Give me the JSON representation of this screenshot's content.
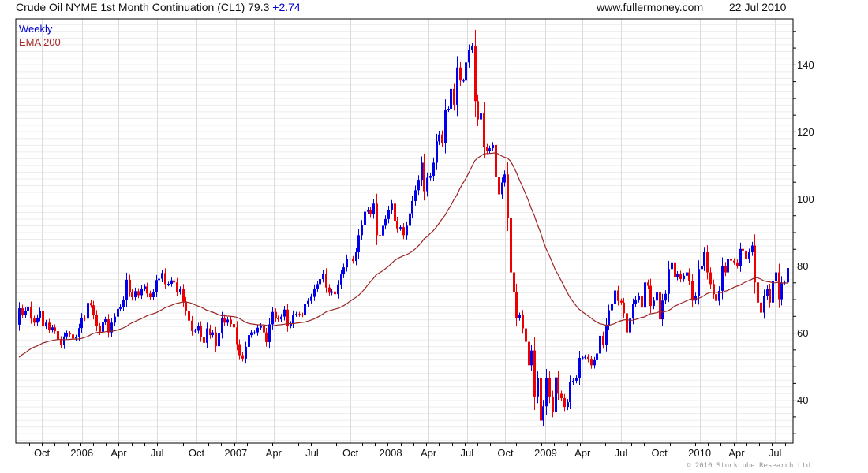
{
  "header": {
    "title": "Crude Oil NYME 1st Month Continuation (CL1) 79.3 ",
    "change": "+2.74",
    "site": "www.fullermoney.com",
    "date": "22 Jul 2010"
  },
  "legend": {
    "series": "Weekly",
    "ema": "EMA 200"
  },
  "footer": {
    "copyright": "© 2010 Stockcube Research Ltd"
  },
  "colors": {
    "up": "#0000ee",
    "down": "#ee0000",
    "ema": "#9b2424",
    "legend_series": "#0000cc",
    "legend_ema": "#a52a2a",
    "change": "#0000cc"
  },
  "chart_data": {
    "type": "candlestick",
    "title": "Crude Oil NYME 1st Month Continuation (CL1)",
    "interval": "weekly",
    "ylim": [
      27.1,
      153.6
    ],
    "y_ticks": [
      40,
      60,
      80,
      100,
      120,
      140
    ],
    "y_minor_grid_step": 2,
    "x_ticks": [
      {
        "label": "Oct",
        "week": 7.7
      },
      {
        "label": "2006",
        "week": 21.1
      },
      {
        "label": "Apr",
        "week": 33.5
      },
      {
        "label": "Jul",
        "week": 46.4
      },
      {
        "label": "Oct",
        "week": 59.6
      },
      {
        "label": "2007",
        "week": 72.8
      },
      {
        "label": "Apr",
        "week": 85.5
      },
      {
        "label": "Jul",
        "week": 98.4
      },
      {
        "label": "Oct",
        "week": 111.3
      },
      {
        "label": "2008",
        "week": 124.8
      },
      {
        "label": "Apr",
        "week": 137.5
      },
      {
        "label": "Jul",
        "week": 150.4
      },
      {
        "label": "Oct",
        "week": 163.3
      },
      {
        "label": "2009",
        "week": 176.8
      },
      {
        "label": "Apr",
        "week": 189.2
      },
      {
        "label": "Jul",
        "week": 202.1
      },
      {
        "label": "Oct",
        "week": 215
      },
      {
        "label": "2010",
        "week": 228.5
      },
      {
        "label": "Apr",
        "week": 240.9
      },
      {
        "label": "Jul",
        "week": 253.8
      }
    ],
    "first_open": 62.4,
    "close": [
      67.3,
      65.4,
      66.6,
      67.8,
      64.2,
      63,
      64.5,
      66.4,
      62,
      63,
      60.9,
      61.6,
      60.5,
      58,
      56.4,
      58.9,
      59.8,
      59.5,
      58.3,
      58.7,
      61.4,
      64.5,
      64.2,
      68.9,
      68.2,
      65.3,
      61.9,
      60.3,
      63.2,
      64,
      60.1,
      63,
      64.8,
      67.1,
      67.7,
      69.7,
      75.8,
      72.2,
      70.6,
      72.4,
      71.2,
      73.2,
      73.8,
      71.7,
      70.6,
      72.1,
      75.7,
      76.1,
      77.8,
      74.5,
      74.6,
      75.6,
      75,
      72.2,
      73,
      69.3,
      66.4,
      63.6,
      60.5,
      60.6,
      62,
      58.7,
      57,
      61.3,
      59.3,
      60.1,
      56,
      60,
      64.5,
      63,
      63.9,
      62.6,
      61.6,
      56.6,
      53.3,
      52.3,
      55.8,
      59.3,
      60.1,
      60.1,
      61.5,
      62.1,
      60.1,
      57.2,
      62.5,
      66.2,
      64.4,
      64,
      64.8,
      66.9,
      62.1,
      62.7,
      65.4,
      65.6,
      65.4,
      65.3,
      68.6,
      69.5,
      70.7,
      73.2,
      74.5,
      76,
      77.6,
      73.5,
      71.9,
      72.3,
      71.5,
      74.4,
      77.4,
      79.5,
      82.1,
      82.1,
      81.4,
      84,
      89.1,
      92.2,
      96.1,
      96.7,
      95.4,
      98.5,
      89.1,
      89,
      91.9,
      93.9,
      96.6,
      98.5,
      93.4,
      91.1,
      91.5,
      89.1,
      91.9,
      95.6,
      99.3,
      102.5,
      105.6,
      110.7,
      102.2,
      106.2,
      106.8,
      110.7,
      117.1,
      119.1,
      116.6,
      126.5,
      126.8,
      132.7,
      128,
      139.1,
      135.2,
      135.2,
      140.6,
      144.4,
      145.6,
      129.1,
      123.6,
      125.6,
      115.4,
      114.2,
      115,
      116,
      106.4,
      101.3,
      104.8,
      107.2,
      94.2,
      78,
      72.1,
      64.4,
      65.2,
      61.3,
      57.3,
      50.3,
      54.7,
      41,
      46.5,
      33.8,
      38.1,
      46.5,
      41,
      36.5,
      46.7,
      41.8,
      40.5,
      37.9,
      39.3,
      45.2,
      45.7,
      46.5,
      52.5,
      52.6,
      52.8,
      52,
      50.3,
      51.8,
      53.8,
      59.1,
      56.5,
      62.4,
      66.7,
      68.7,
      72.6,
      69.5,
      69,
      65.8,
      60.1,
      64.2,
      68.5,
      69.9,
      71,
      67.5,
      75,
      74,
      68,
      69.6,
      72,
      64,
      69.6,
      71.6,
      79,
      81,
      76.5,
      77.5,
      76,
      77,
      78,
      75.5,
      69.6,
      71,
      79,
      80,
      84,
      78,
      74.5,
      71.5,
      69.5,
      72.5,
      80,
      78,
      82,
      81.5,
      81,
      80,
      85,
      84.5,
      82,
      84,
      86,
      75,
      69,
      66,
      71,
      73,
      69,
      75.5,
      78,
      70,
      75,
      75,
      79.3
    ],
    "ema": {
      "label": "EMA 200",
      "period_weeks": 40,
      "seed": 52.7
    }
  }
}
